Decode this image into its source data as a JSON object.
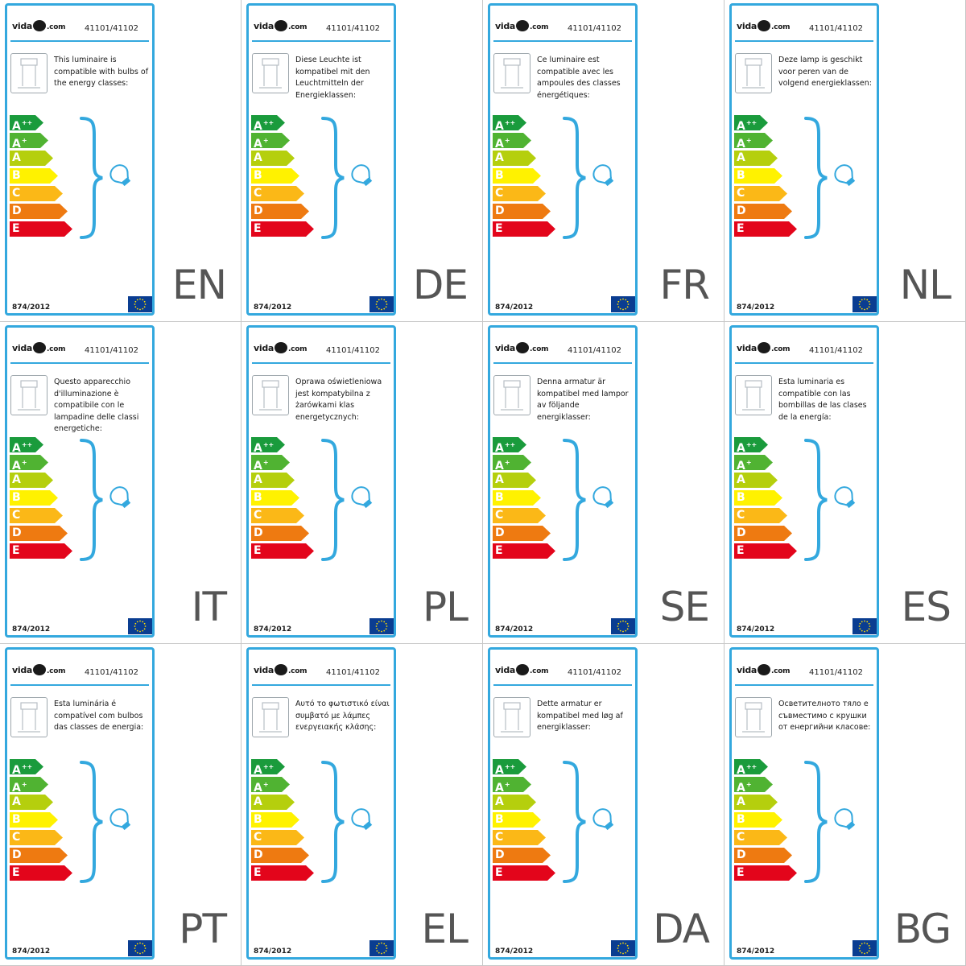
{
  "brand": {
    "prefix": "vida",
    "suffix": ".com",
    "logo_mark": "xl-logo"
  },
  "product_code": "41101/41102",
  "regulation": "874/2012",
  "energy_classes": [
    {
      "letter": "A",
      "sup": "++",
      "color": "#1a9b3c"
    },
    {
      "letter": "A",
      "sup": "+",
      "color": "#50b332"
    },
    {
      "letter": "A",
      "sup": "",
      "color": "#b5cf0d"
    },
    {
      "letter": "B",
      "sup": "",
      "color": "#fff200"
    },
    {
      "letter": "C",
      "sup": "",
      "color": "#fbb817"
    },
    {
      "letter": "D",
      "sup": "",
      "color": "#ee7a11"
    },
    {
      "letter": "E",
      "sup": "",
      "color": "#e3051b"
    }
  ],
  "colors": {
    "frame": "#33a8de",
    "bulb": "#33a8de",
    "brace": "#33a8de",
    "eu_flag": "#0a3d91",
    "eu_star": "#ffdd00"
  },
  "panels": [
    {
      "lang": "EN",
      "text": "This luminaire is compatible with bulbs of the energy classes:"
    },
    {
      "lang": "DE",
      "text": "Diese Leuchte ist kompatibel mit den Leuchtmitteln der Energieklassen:"
    },
    {
      "lang": "FR",
      "text": "Ce luminaire est compatible avec les ampoules des classes énergétiques:"
    },
    {
      "lang": "NL",
      "text": "Deze lamp is geschikt voor peren van de volgend energieklassen:"
    },
    {
      "lang": "IT",
      "text": "Questo apparecchio d'illuminazione è compatibile con le lampadine delle classi energetiche:"
    },
    {
      "lang": "PL",
      "text": "Oprawa oświetleniowa jest kompatybilna z żarówkami klas energetycznych:"
    },
    {
      "lang": "SE",
      "text": "Denna armatur är kompatibel med lampor av följande energiklasser:"
    },
    {
      "lang": "ES",
      "text": "Esta luminaria es compatible con las bombillas de las clases de la energía:"
    },
    {
      "lang": "PT",
      "text": "Esta luminária é compatível com bulbos das classes de energia:"
    },
    {
      "lang": "EL",
      "text": "Αυτό το φωτιστικό είναι συμβατό με λάμπες ενεργειακής κλάσης:"
    },
    {
      "lang": "DA",
      "text": "Dette armatur er kompatibel med løg af energiklasser:"
    },
    {
      "lang": "BG",
      "text": "Осветителното тяло е съвместимо с крушки от енергийни класове:"
    }
  ]
}
